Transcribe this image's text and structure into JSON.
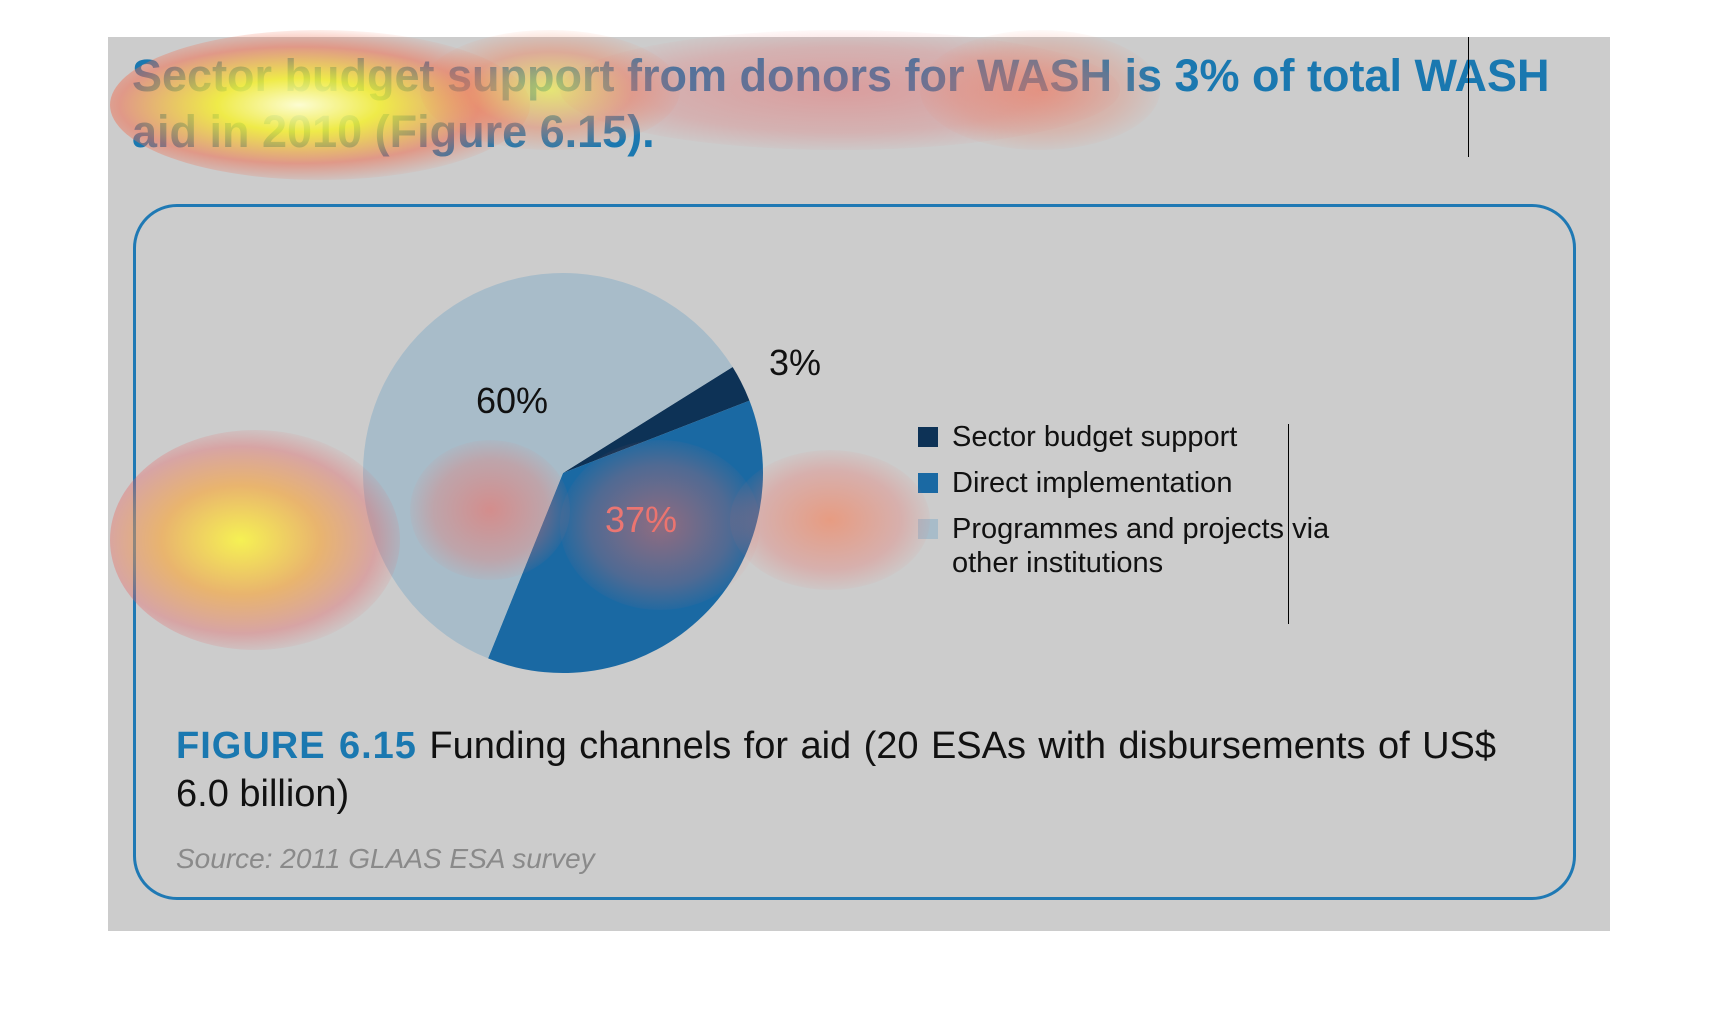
{
  "headline": "Sector budget support from donors for WASH is 3% of total WASH aid in 2010 (Figure 6.15).",
  "caption": {
    "label": "FIGURE 6.15",
    "text": "Funding channels for aid (20 ESAs with disbursements of US$ 6.0 billion)"
  },
  "source": "Source: 2011 GLAAS ESA survey",
  "chart_data": {
    "type": "pie",
    "title": "",
    "slices": [
      {
        "label": "Sector budget support",
        "value": 3,
        "display": "3%",
        "color": "#0d3256"
      },
      {
        "label": "Direct implementation",
        "value": 37,
        "display": "37%",
        "color": "#1a69a3"
      },
      {
        "label": "Programmes and projects via other institutions",
        "value": 60,
        "display": "60%",
        "color": "#a8bcc9"
      }
    ],
    "legend_position": "right"
  },
  "colors": {
    "accent": "#1a78b0",
    "panel_background": "#cccccc",
    "frame_border": "#1f79b4",
    "source_text": "#8a8a8a"
  }
}
